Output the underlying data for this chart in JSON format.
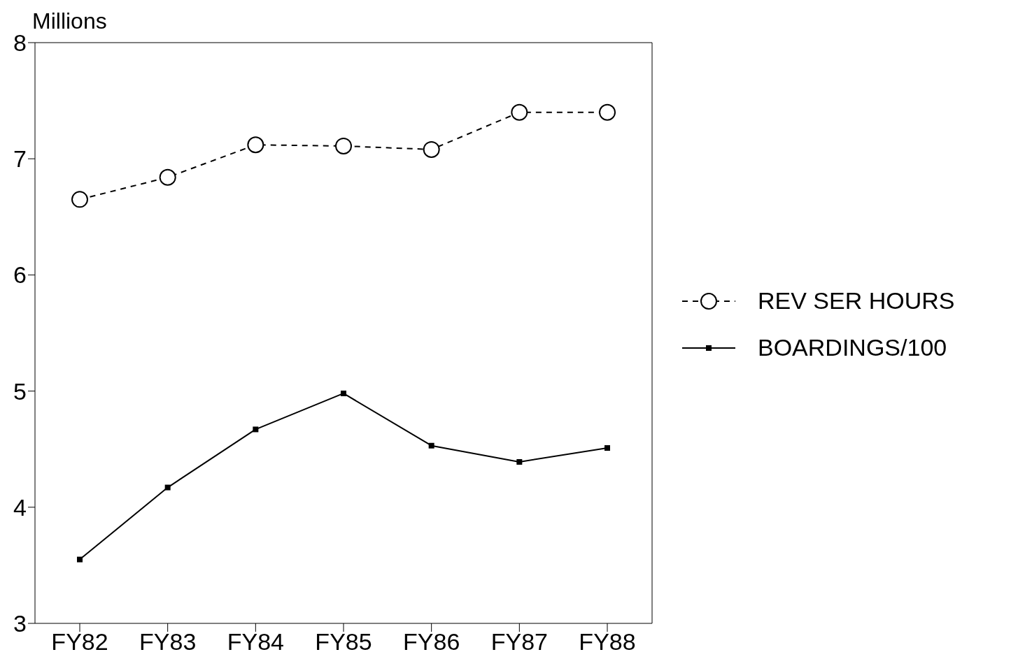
{
  "chart_data": {
    "type": "line",
    "ylabel": "Millions",
    "categories": [
      "FY82",
      "FY83",
      "FY84",
      "FY85",
      "FY86",
      "FY87",
      "FY88"
    ],
    "series": [
      {
        "name": "REV SER HOURS",
        "color": "#000000",
        "marker": "circle",
        "line_style": "dashed",
        "values": [
          6.65,
          6.84,
          7.12,
          7.11,
          7.08,
          7.4,
          7.4
        ]
      },
      {
        "name": "BOARDINGS/100",
        "color": "#000000",
        "marker": "square",
        "line_style": "solid",
        "values": [
          3.55,
          4.17,
          4.67,
          4.98,
          4.53,
          4.39,
          4.51
        ]
      }
    ],
    "ylim": [
      3,
      8
    ],
    "yticks": [
      3,
      4,
      5,
      6,
      7,
      8
    ],
    "grid": false,
    "legend": "right"
  }
}
